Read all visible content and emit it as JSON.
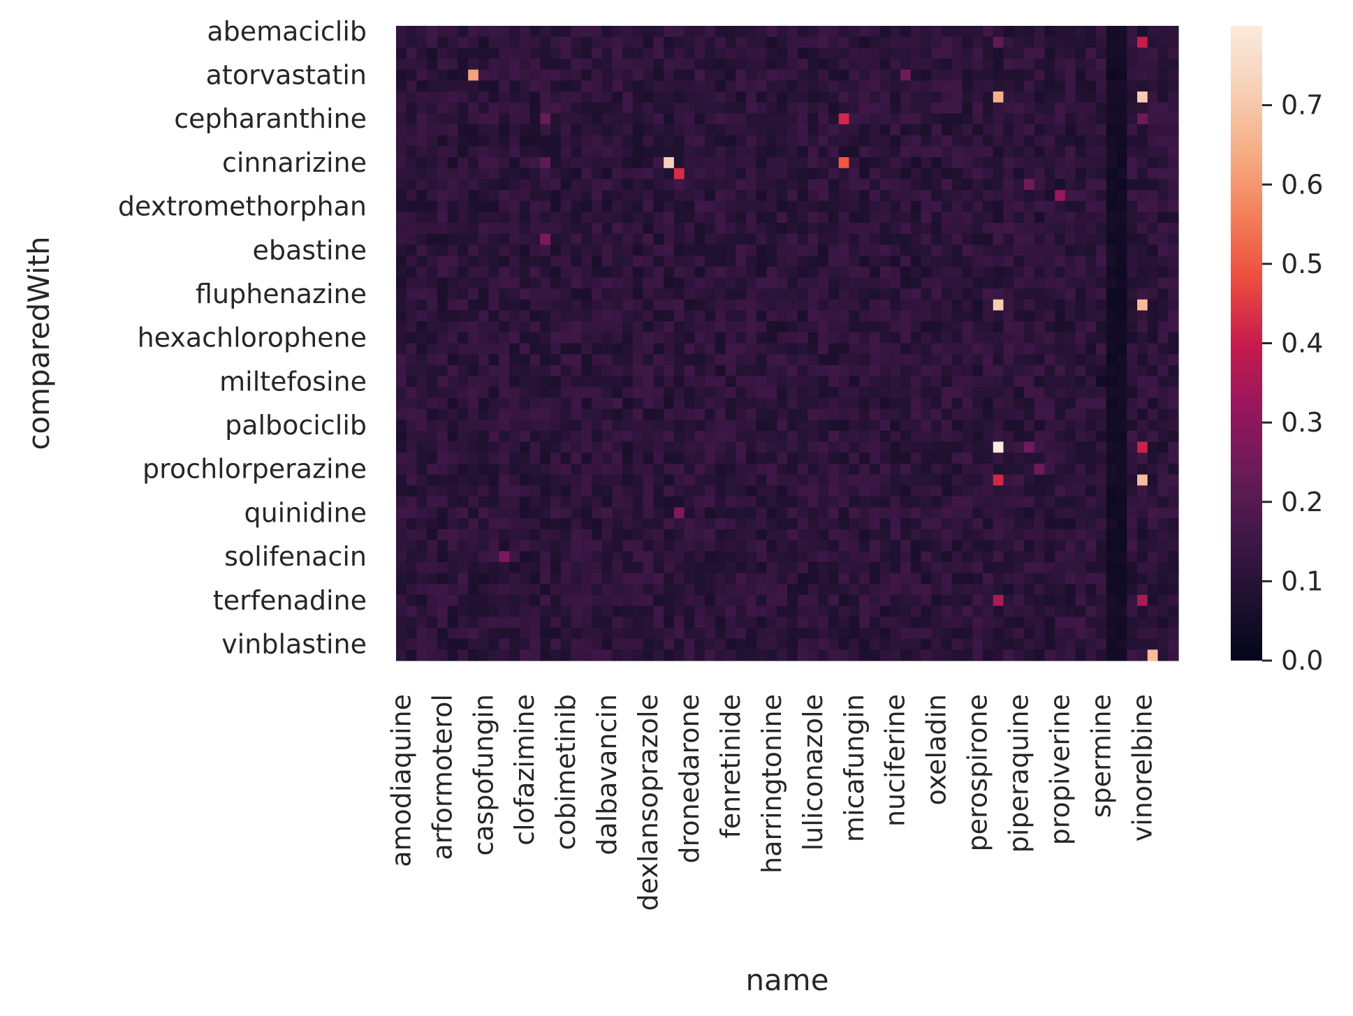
{
  "chart_data": {
    "type": "heatmap",
    "title": "",
    "xlabel": "name",
    "ylabel": "comparedWith",
    "x_tick_labels": [
      "amodiaquine",
      "arformoterol",
      "caspofungin",
      "clofazimine",
      "cobimetinib",
      "dalbavancin",
      "dexlansoprazole",
      "dronedarone",
      "fenretinide",
      "harringtonine",
      "luliconazole",
      "micafungin",
      "nuciferine",
      "oxeladin",
      "perospirone",
      "piperaquine",
      "propiverine",
      "spermine",
      "vinorelbine"
    ],
    "y_tick_labels": [
      "abemaciclib",
      "atorvastatin",
      "cepharanthine",
      "cinnarizine",
      "dextromethorphan",
      "ebastine",
      "fluphenazine",
      "hexachlorophene",
      "miltefosine",
      "palbociclib",
      "prochlorperazine",
      "quinidine",
      "solifenacin",
      "terfenadine",
      "vinblastine"
    ],
    "n_columns": 76,
    "n_rows": 58,
    "tick_every": 4,
    "colorbar": {
      "vmin": 0.0,
      "vmax": 0.8,
      "ticks": [
        "0.0",
        "0.1",
        "0.2",
        "0.3",
        "0.4",
        "0.5",
        "0.6",
        "0.7"
      ],
      "colormap": "rocket"
    },
    "base_level": 0.11,
    "highlights": [
      {
        "row": 1,
        "col": 72,
        "value": 0.4
      },
      {
        "row": 1,
        "col": 58,
        "value": 0.22
      },
      {
        "row": 4,
        "col": 7,
        "value": 0.62
      },
      {
        "row": 4,
        "col": 49,
        "value": 0.25
      },
      {
        "row": 6,
        "col": 58,
        "value": 0.65
      },
      {
        "row": 6,
        "col": 72,
        "value": 0.71
      },
      {
        "row": 8,
        "col": 43,
        "value": 0.42
      },
      {
        "row": 8,
        "col": 72,
        "value": 0.24
      },
      {
        "row": 8,
        "col": 14,
        "value": 0.23
      },
      {
        "row": 12,
        "col": 43,
        "value": 0.5
      },
      {
        "row": 12,
        "col": 26,
        "value": 0.72
      },
      {
        "row": 13,
        "col": 27,
        "value": 0.43
      },
      {
        "row": 14,
        "col": 61,
        "value": 0.25
      },
      {
        "row": 15,
        "col": 64,
        "value": 0.32
      },
      {
        "row": 25,
        "col": 58,
        "value": 0.71
      },
      {
        "row": 25,
        "col": 72,
        "value": 0.67
      },
      {
        "row": 38,
        "col": 58,
        "value": 0.8
      },
      {
        "row": 38,
        "col": 72,
        "value": 0.41
      },
      {
        "row": 38,
        "col": 61,
        "value": 0.25
      },
      {
        "row": 41,
        "col": 58,
        "value": 0.42
      },
      {
        "row": 41,
        "col": 72,
        "value": 0.68
      },
      {
        "row": 52,
        "col": 58,
        "value": 0.36
      },
      {
        "row": 52,
        "col": 72,
        "value": 0.36
      },
      {
        "row": 57,
        "col": 73,
        "value": 0.68
      },
      {
        "row": 19,
        "col": 14,
        "value": 0.27
      },
      {
        "row": 12,
        "col": 14,
        "value": 0.22
      },
      {
        "row": 32,
        "col": 68,
        "value": 0.04
      },
      {
        "row": 44,
        "col": 27,
        "value": 0.27
      },
      {
        "row": 40,
        "col": 62,
        "value": 0.24
      },
      {
        "row": 48,
        "col": 10,
        "value": 0.27
      }
    ]
  }
}
